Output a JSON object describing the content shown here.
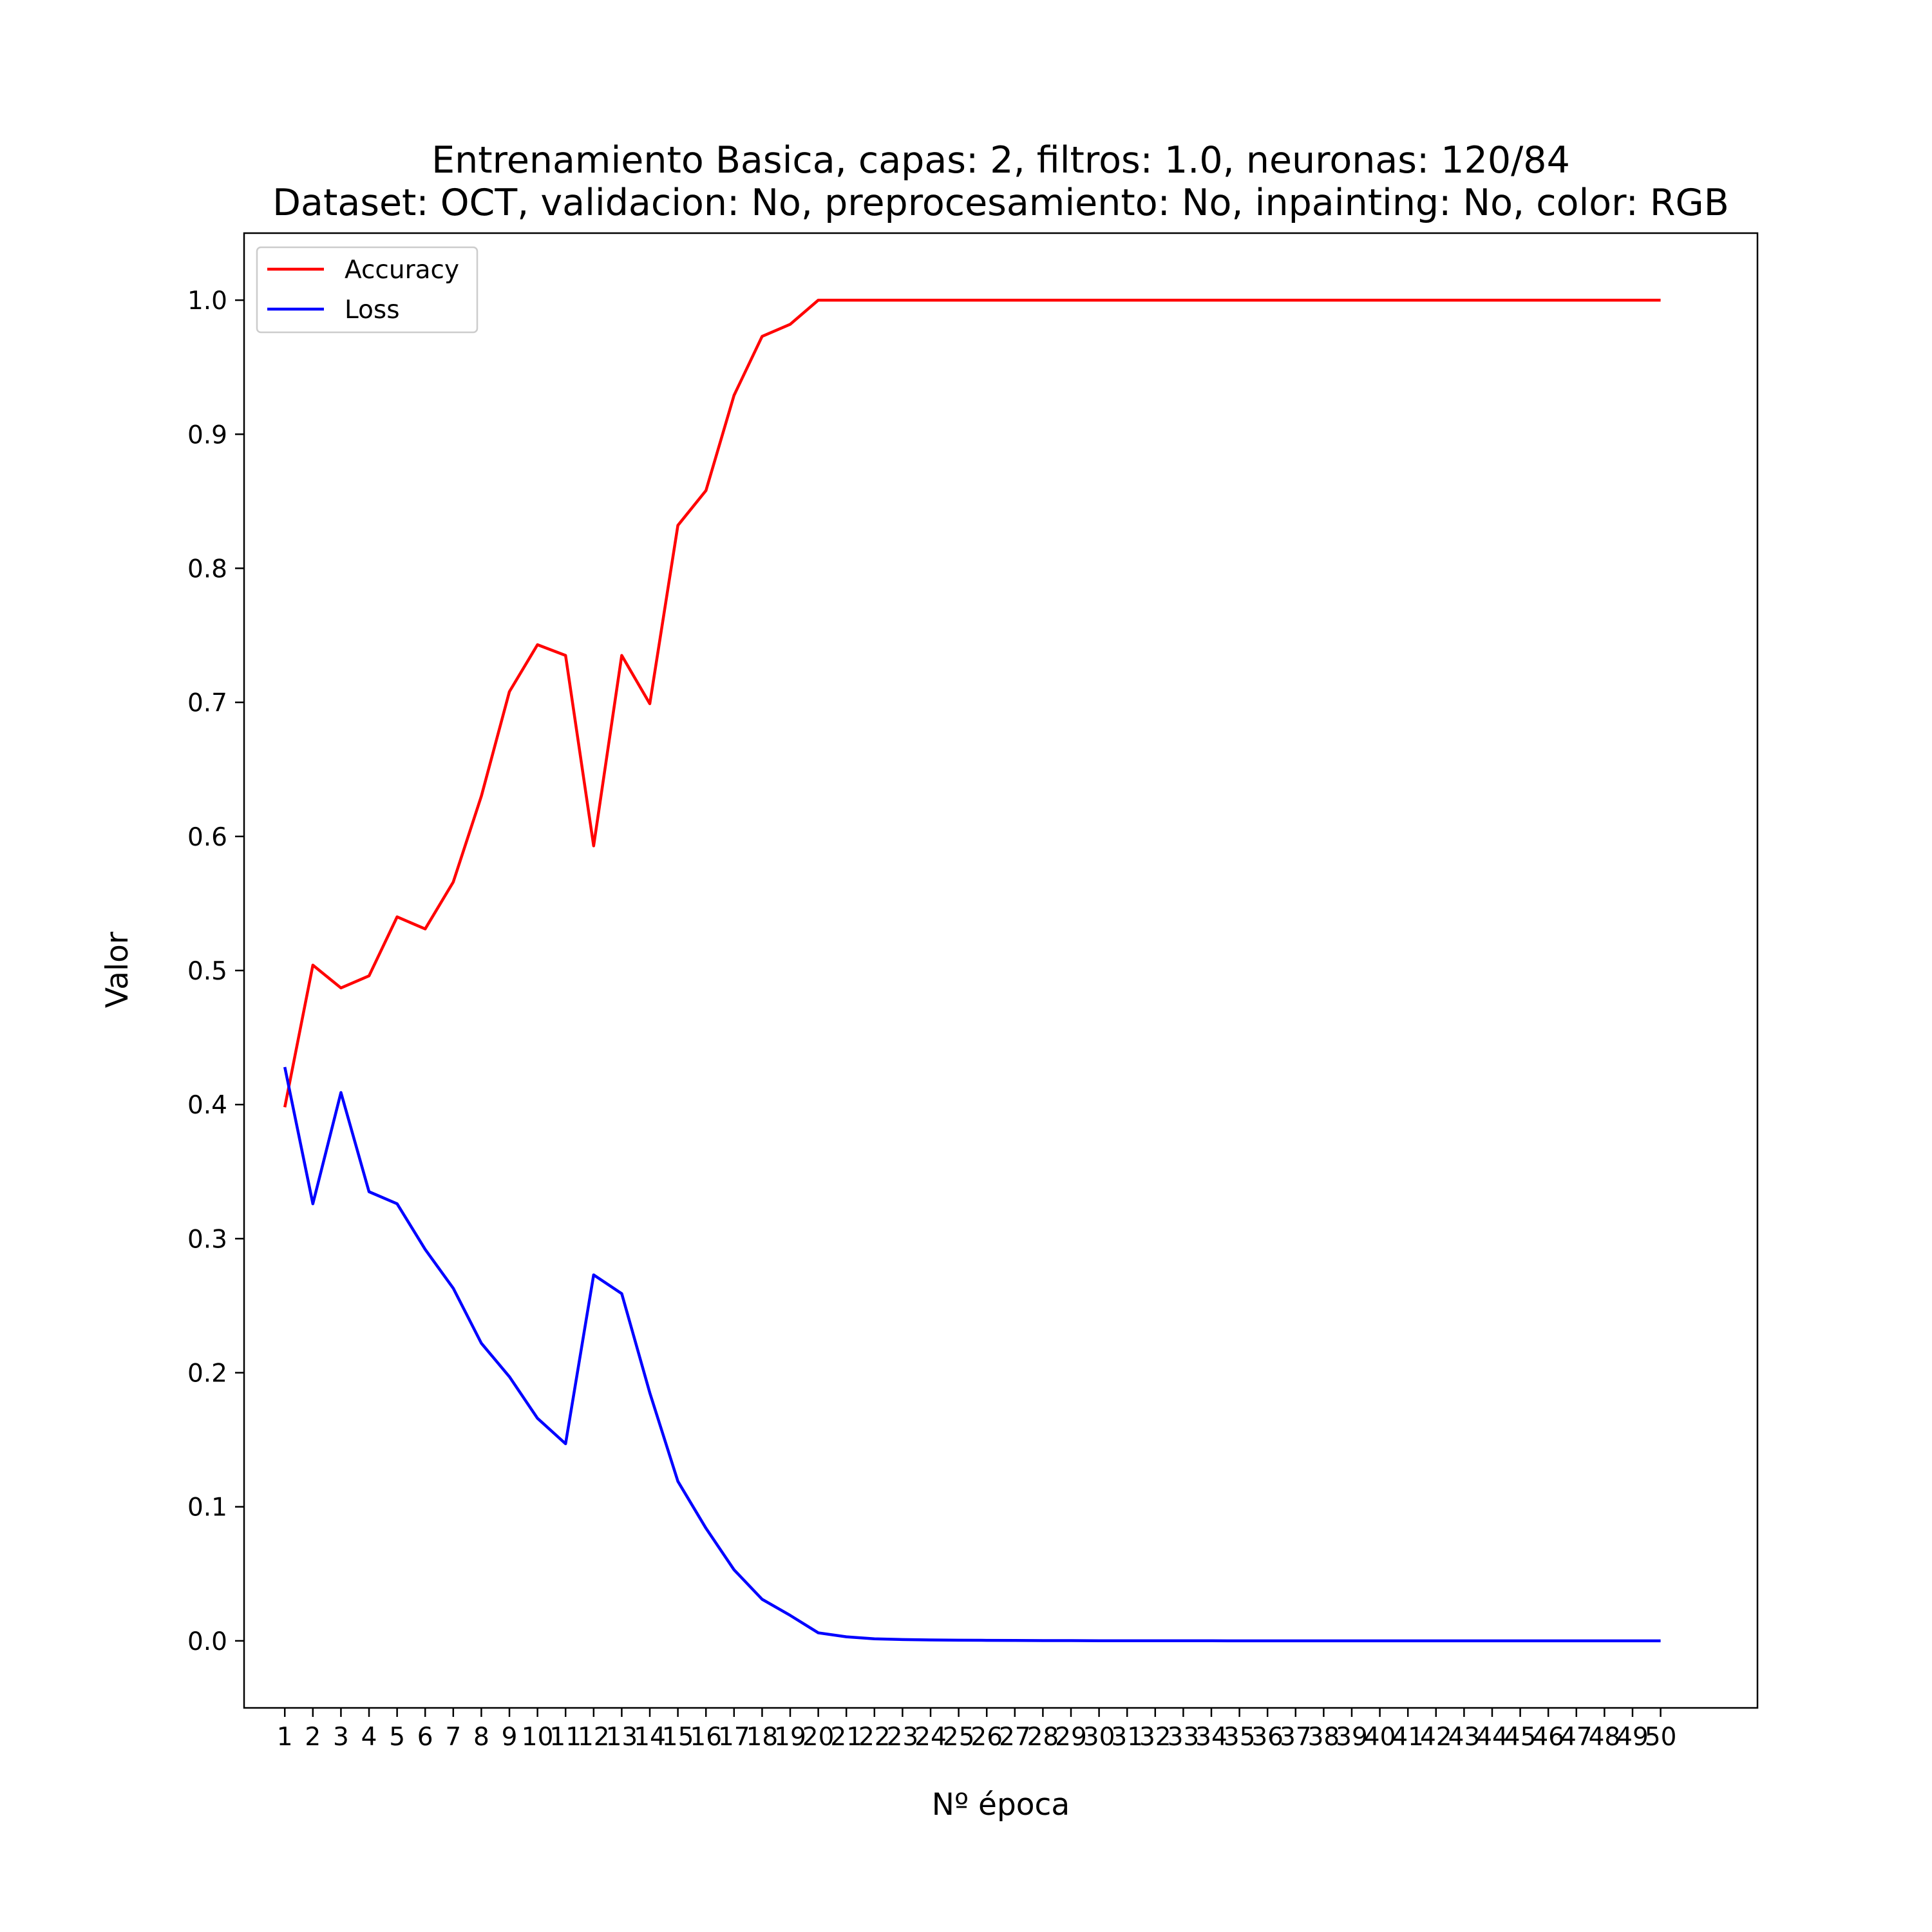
{
  "chart_data": {
    "type": "line",
    "title": "Entrenamiento Basica, capas: 2, filtros: 1.0, neuronas: 120/84",
    "subtitle": "Dataset: OCT, validacion: No, preprocesamiento: No, inpainting: No, color: RGB",
    "xlabel": "Nº época",
    "ylabel": "Valor",
    "x": [
      1,
      2,
      3,
      4,
      5,
      6,
      7,
      8,
      9,
      10,
      11,
      12,
      13,
      14,
      15,
      16,
      17,
      18,
      19,
      20,
      21,
      22,
      23,
      24,
      25,
      26,
      27,
      28,
      29,
      30,
      31,
      32,
      33,
      34,
      35,
      36,
      37,
      38,
      39,
      40,
      41,
      42,
      43,
      44,
      45,
      46,
      47,
      48,
      49,
      50
    ],
    "xlim": [
      -0.45,
      53.45
    ],
    "ylim": [
      -0.05,
      1.05
    ],
    "yticks": [
      0.0,
      0.1,
      0.2,
      0.3,
      0.4,
      0.5,
      0.6,
      0.7,
      0.8,
      0.9,
      1.0
    ],
    "ytick_labels": [
      "0.0",
      "0.1",
      "0.2",
      "0.3",
      "0.4",
      "0.5",
      "0.6",
      "0.7",
      "0.8",
      "0.9",
      "1.0"
    ],
    "grid": false,
    "legend_position": "upper-left",
    "series": [
      {
        "name": "Accuracy",
        "color": "#ff0000",
        "values": [
          0.398,
          0.504,
          0.487,
          0.496,
          0.54,
          0.531,
          0.566,
          0.63,
          0.708,
          0.743,
          0.735,
          0.593,
          0.735,
          0.699,
          0.832,
          0.858,
          0.929,
          0.973,
          0.982,
          1.0,
          1.0,
          1.0,
          1.0,
          1.0,
          1.0,
          1.0,
          1.0,
          1.0,
          1.0,
          1.0,
          1.0,
          1.0,
          1.0,
          1.0,
          1.0,
          1.0,
          1.0,
          1.0,
          1.0,
          1.0,
          1.0,
          1.0,
          1.0,
          1.0,
          1.0,
          1.0,
          1.0,
          1.0,
          1.0,
          1.0
        ]
      },
      {
        "name": "Loss",
        "color": "#0000ff",
        "values": [
          0.428,
          0.326,
          0.409,
          0.335,
          0.326,
          0.292,
          0.263,
          0.222,
          0.197,
          0.166,
          0.147,
          0.273,
          0.259,
          0.185,
          0.119,
          0.084,
          0.053,
          0.031,
          0.019,
          0.006,
          0.003,
          0.0015,
          0.001,
          0.0007,
          0.0005,
          0.0004,
          0.0003,
          0.0002,
          0.0002,
          0.0001,
          0.0001,
          0.0001,
          0.0001,
          0.0001,
          0.0,
          0.0,
          0.0,
          0.0,
          0.0,
          0.0,
          0.0,
          0.0,
          0.0,
          0.0,
          0.0,
          0.0,
          0.0,
          0.0,
          0.0,
          0.0
        ]
      }
    ]
  }
}
